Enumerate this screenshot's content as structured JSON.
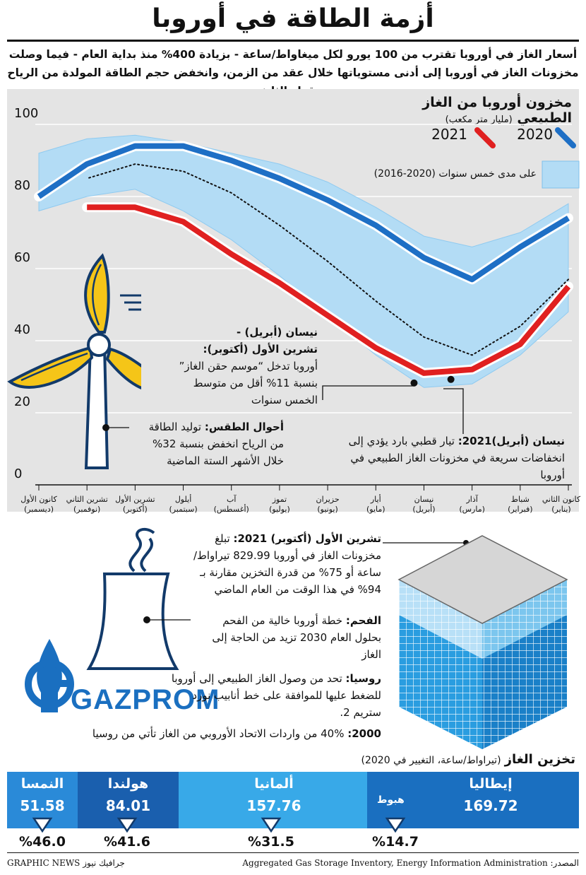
{
  "header": {
    "title": "أزمة الطاقة في أوروبا",
    "subtitle_line1": "أسعار الغاز في أوروبا تقترب من 100 يورو لكل ميغاواط/ساعة - بزيادة 400% منذ بداية العام - فيما وصلت",
    "subtitle_line2": "مخزونات الغاز في أوروبا إلى أدنى مستوياتها خلال عقد من الزمن، وانخفض حجم الطاقة المولدة من الرياح بمقدار الثلث"
  },
  "chart_data": {
    "type": "line",
    "title": "مخزون أوروبا من الغاز الطبيعي",
    "unit": "(مليار متر مكعب)",
    "ylim": [
      0,
      100
    ],
    "yticks": [
      0,
      20,
      40,
      60,
      80,
      100
    ],
    "categories": [
      {
        "name": "كانون الثاني",
        "alt": "(يناير)"
      },
      {
        "name": "شباط",
        "alt": "(فبراير)"
      },
      {
        "name": "آذار",
        "alt": "(مارس)"
      },
      {
        "name": "نيسان",
        "alt": "(أبريل)"
      },
      {
        "name": "أيار",
        "alt": "(مايو)"
      },
      {
        "name": "حزيران",
        "alt": "(يونيو)"
      },
      {
        "name": "تموز",
        "alt": "(يوليو)"
      },
      {
        "name": "آب",
        "alt": "(أغسطس)"
      },
      {
        "name": "أيلول",
        "alt": "(سبتمبر)"
      },
      {
        "name": "تشرين الأول",
        "alt": "(أكتوبر)"
      },
      {
        "name": "تشرين الثاني",
        "alt": "(نوفمبر)"
      },
      {
        "name": "كانون الأول",
        "alt": "(ديسمبر)"
      }
    ],
    "series": [
      {
        "name": "2020",
        "color": "#1e6fc5",
        "values": [
          74,
          66,
          57,
          63,
          72,
          79,
          85,
          90,
          94,
          94,
          89,
          80
        ]
      },
      {
        "name": "2021",
        "color": "#e02020",
        "values": [
          55,
          39,
          32,
          31,
          38,
          47,
          56,
          64,
          73,
          77,
          77,
          null
        ]
      },
      {
        "name": "متوسط",
        "color": "#111111",
        "values": [
          57,
          44,
          36,
          41,
          51,
          62,
          72,
          81,
          87,
          89,
          85,
          null
        ]
      }
    ],
    "band": {
      "name": "على مدى خمس سنوات (2020-2016)",
      "color": "#b3dcf5",
      "low": [
        48,
        36,
        28,
        27,
        36,
        47,
        58,
        68,
        76,
        82,
        80,
        76
      ],
      "high": [
        78,
        70,
        66,
        69,
        77,
        84,
        89,
        92,
        95,
        97,
        96,
        92
      ]
    },
    "legend": {
      "label_2021": "2021",
      "label_2020": "2020",
      "band_label": "على مدى خمس سنوات (2020-2016)"
    }
  },
  "notes": {
    "april_oct_title": "نيسان (أبريل) -",
    "april_oct_title2": "تشرين الأول (أكتوبر):",
    "april_oct_text": "أوروبا تدخل “موسم حقن الغاز” بنسبة 11% أقل من متوسط الخمس سنوات",
    "weather_title": "أحوال الطقس:",
    "weather_text": "توليد الطاقة من الرياح انخفض بنسبة 32% خلال الأشهر الستة الماضية",
    "april2021_title": "نيسان (أبريل)2021:",
    "april2021_text": "تيار قطبي بارد يؤدي إلى انخفاضات سريعة في مخزونات الغاز الطبيعي في أوروبا",
    "oct2021_title": "تشرين الأول (أكتوبر) 2021:",
    "oct2021_text": "تبلغ مخزونات الغاز في أوروبا 829.99 تيراواط/ساعة أو 75% من قدرة التخزين مقارنة بـ 94% في هذا الوقت من العام الماضي",
    "coal_title": "الفحم:",
    "coal_text": "خطة أوروبا خالية من الفحم بحلول العام 2030 تزيد من الحاجة إلى الغاز",
    "russia_title": "روسيا:",
    "russia_text": "تحد من وصول الغاز الطبيعي إلى أوروبا للضغط عليها للموافقة على خط أنابيب نورد ستريم 2.",
    "year2000_title": "2000:",
    "year2000_text": "40% من واردات الاتحاد الأوروبي من الغاز تأتي من روسيا"
  },
  "gazprom": {
    "logo_text": "GAZPROM"
  },
  "storage": {
    "title": "تخزين الغاز",
    "unit": "(تيراواط/ساعة، التغيير في 2020)",
    "drop_label": "هبوط",
    "countries": [
      {
        "name": "إيطاليا",
        "value": "169.72",
        "change": "%14.7",
        "color": "#1a6fc0"
      },
      {
        "name": "ألمانيا",
        "value": "157.76",
        "change": "%31.5",
        "color": "#38a9e8"
      },
      {
        "name": "هولندا",
        "value": "84.01",
        "change": "%41.6",
        "color": "#1a5fae"
      },
      {
        "name": "النمسا",
        "value": "51.58",
        "change": "%46.0",
        "color": "#2a8ad8"
      }
    ]
  },
  "footer": {
    "source": "المصدر: Aggregated Gas Storage Inventory, Energy Information Administration",
    "credit": "GRAPHIC NEWS جرافيك نيوز"
  }
}
